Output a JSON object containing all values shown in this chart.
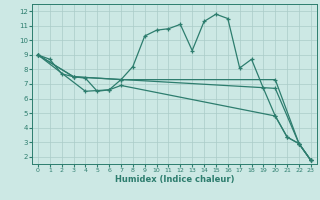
{
  "xlabel": "Humidex (Indice chaleur)",
  "bg_color": "#cce8e4",
  "line_color": "#2d7d6e",
  "grid_color": "#aaccc8",
  "xlim": [
    -0.5,
    23.5
  ],
  "ylim": [
    1.5,
    12.5
  ],
  "xticks": [
    0,
    1,
    2,
    3,
    4,
    5,
    6,
    7,
    8,
    9,
    10,
    11,
    12,
    13,
    14,
    15,
    16,
    17,
    18,
    19,
    20,
    21,
    22,
    23
  ],
  "yticks": [
    2,
    3,
    4,
    5,
    6,
    7,
    8,
    9,
    10,
    11,
    12
  ],
  "series": [
    {
      "x": [
        0,
        1,
        2,
        3,
        4,
        5,
        6,
        7,
        8,
        9,
        10,
        11,
        12,
        13,
        14,
        15,
        16,
        17,
        18,
        19,
        20,
        21,
        22,
        23
      ],
      "y": [
        9.0,
        8.7,
        7.7,
        7.5,
        7.4,
        6.5,
        6.6,
        7.3,
        8.2,
        10.3,
        10.7,
        10.8,
        11.1,
        9.3,
        11.3,
        11.8,
        11.5,
        8.1,
        8.7,
        6.7,
        4.8,
        3.35,
        2.9,
        1.75
      ]
    },
    {
      "x": [
        0,
        3,
        20,
        22,
        23
      ],
      "y": [
        9.0,
        7.5,
        6.7,
        2.9,
        1.75
      ]
    },
    {
      "x": [
        0,
        3,
        7,
        20,
        22,
        23
      ],
      "y": [
        9.0,
        7.5,
        7.3,
        7.3,
        2.9,
        1.75
      ]
    },
    {
      "comment": "line from 0 to 4,6.5 to 6,6.6 to 7,6.9 to 20,4.8 to 21,3.35 to 22,2.9 to 23,1.75",
      "x": [
        0,
        4,
        6,
        7,
        20,
        21,
        22,
        23
      ],
      "y": [
        9.0,
        6.5,
        6.6,
        6.9,
        4.8,
        3.35,
        2.9,
        1.75
      ]
    }
  ]
}
